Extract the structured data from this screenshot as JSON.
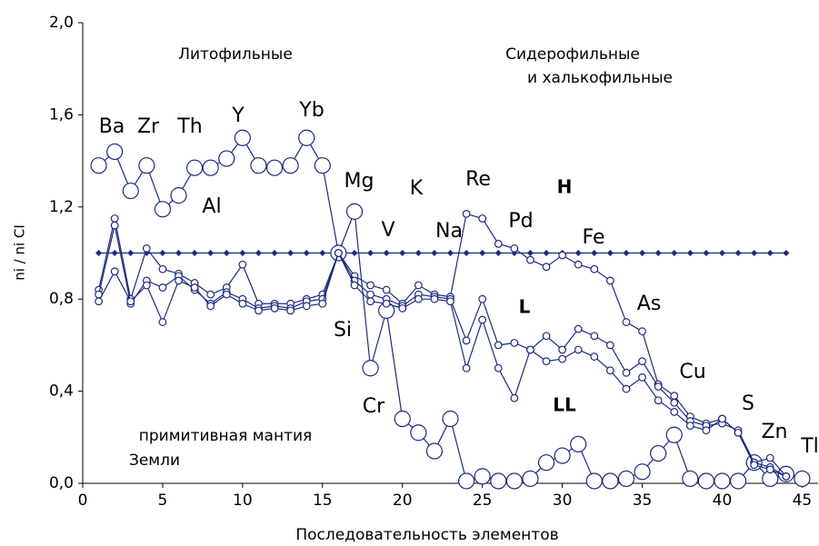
{
  "chart_data": {
    "type": "line",
    "x_label": "Последовательность элементов",
    "y_label": "ni / ni CI",
    "x": [
      1,
      2,
      3,
      4,
      5,
      6,
      7,
      8,
      9,
      10,
      11,
      12,
      13,
      14,
      15,
      16,
      17,
      18,
      19,
      20,
      21,
      22,
      23,
      24,
      25,
      26,
      27,
      28,
      29,
      30,
      31,
      32,
      33,
      34,
      35,
      36,
      37,
      38,
      39,
      40,
      41,
      42,
      43,
      44,
      45
    ],
    "series": [
      {
        "color": "#1c2a80",
        "marker": "diamond",
        "values": [
          1,
          1,
          1,
          1,
          1,
          1,
          1,
          1,
          1,
          1,
          1,
          1,
          1,
          1,
          1,
          1,
          1,
          1,
          1,
          1,
          1,
          1,
          1,
          1,
          1,
          1,
          1,
          1,
          1,
          1,
          1,
          1,
          1,
          1,
          1,
          1,
          1,
          1,
          1,
          1,
          1,
          1,
          1,
          1,
          null
        ]
      },
      {
        "color": "#1c2a80",
        "marker": "big-circle",
        "values": [
          1.38,
          1.44,
          1.27,
          1.38,
          1.19,
          1.25,
          1.37,
          1.37,
          1.41,
          1.5,
          1.38,
          1.37,
          1.38,
          1.5,
          1.38,
          1.0,
          1.18,
          0.5,
          0.75,
          0.28,
          0.22,
          0.14,
          0.28,
          0.01,
          0.03,
          0.01,
          0.01,
          0.02,
          0.09,
          0.12,
          0.17,
          0.01,
          0.01,
          0.02,
          0.05,
          0.13,
          0.21,
          0.02,
          0.01,
          0.01,
          0.01,
          0.09,
          0.02,
          0.04,
          0.02
        ]
      },
      {
        "name": "H",
        "color": "#1c2a80",
        "marker": "circle",
        "values": [
          0.84,
          1.15,
          0.8,
          1.02,
          0.93,
          0.91,
          0.87,
          0.82,
          0.85,
          0.95,
          0.78,
          0.78,
          0.78,
          0.8,
          0.82,
          1.0,
          0.9,
          0.86,
          0.84,
          0.78,
          0.86,
          0.82,
          0.81,
          1.17,
          1.15,
          1.04,
          1.02,
          0.97,
          0.94,
          0.99,
          0.95,
          0.93,
          0.88,
          0.7,
          0.66,
          0.43,
          0.38,
          0.29,
          0.26,
          0.28,
          0.22,
          0.09,
          0.11,
          0.03,
          null
        ]
      },
      {
        "name": "L",
        "color": "#1c2a80",
        "marker": "circle",
        "values": [
          0.82,
          1.12,
          0.78,
          0.88,
          0.85,
          0.9,
          0.84,
          0.78,
          0.83,
          0.8,
          0.76,
          0.77,
          0.76,
          0.79,
          0.8,
          1.0,
          0.88,
          0.82,
          0.8,
          0.77,
          0.82,
          0.81,
          0.8,
          0.62,
          0.8,
          0.6,
          0.61,
          0.58,
          0.64,
          0.58,
          0.67,
          0.64,
          0.6,
          0.48,
          0.53,
          0.42,
          0.35,
          0.27,
          0.25,
          0.26,
          0.23,
          0.09,
          0.07,
          0.03,
          null
        ]
      },
      {
        "name": "LL",
        "color": "#1c2a80",
        "marker": "circle",
        "values": [
          0.79,
          0.92,
          0.79,
          0.86,
          0.7,
          0.88,
          0.85,
          0.77,
          0.82,
          0.78,
          0.75,
          0.76,
          0.75,
          0.77,
          0.78,
          1.0,
          0.86,
          0.79,
          0.78,
          0.76,
          0.8,
          0.8,
          0.79,
          0.5,
          0.71,
          0.5,
          0.37,
          0.58,
          0.53,
          0.54,
          0.58,
          0.55,
          0.49,
          0.41,
          0.46,
          0.36,
          0.31,
          0.25,
          0.23,
          0.28,
          0.22,
          0.08,
          0.06,
          0.03,
          null
        ]
      }
    ],
    "annotations": [
      "Ba",
      "Zr",
      "Th",
      "Y",
      "Yb",
      "Al",
      "Mg",
      "K",
      "Re",
      "Pd",
      "Fe",
      "V",
      "Na",
      "Si",
      "Cr",
      "As",
      "Cu",
      "S",
      "Zn",
      "Tl",
      "Литофильные",
      "Сидерофильные",
      "и халькофильные",
      "примитивная мантия",
      "Земли"
    ],
    "xlim": [
      0,
      46
    ],
    "ylim": [
      0,
      2
    ],
    "xticks": [
      0,
      5,
      10,
      15,
      20,
      25,
      30,
      35,
      40,
      45
    ],
    "yticks": [
      {
        "value": 0,
        "label": "0,0"
      },
      {
        "value": 0.4,
        "label": "0,4"
      },
      {
        "value": 0.8,
        "label": "0,8"
      },
      {
        "value": 1.2,
        "label": "1,2"
      },
      {
        "value": 1.6,
        "label": "1,6"
      },
      {
        "value": 2,
        "label": "2,0"
      }
    ],
    "grid": false
  }
}
